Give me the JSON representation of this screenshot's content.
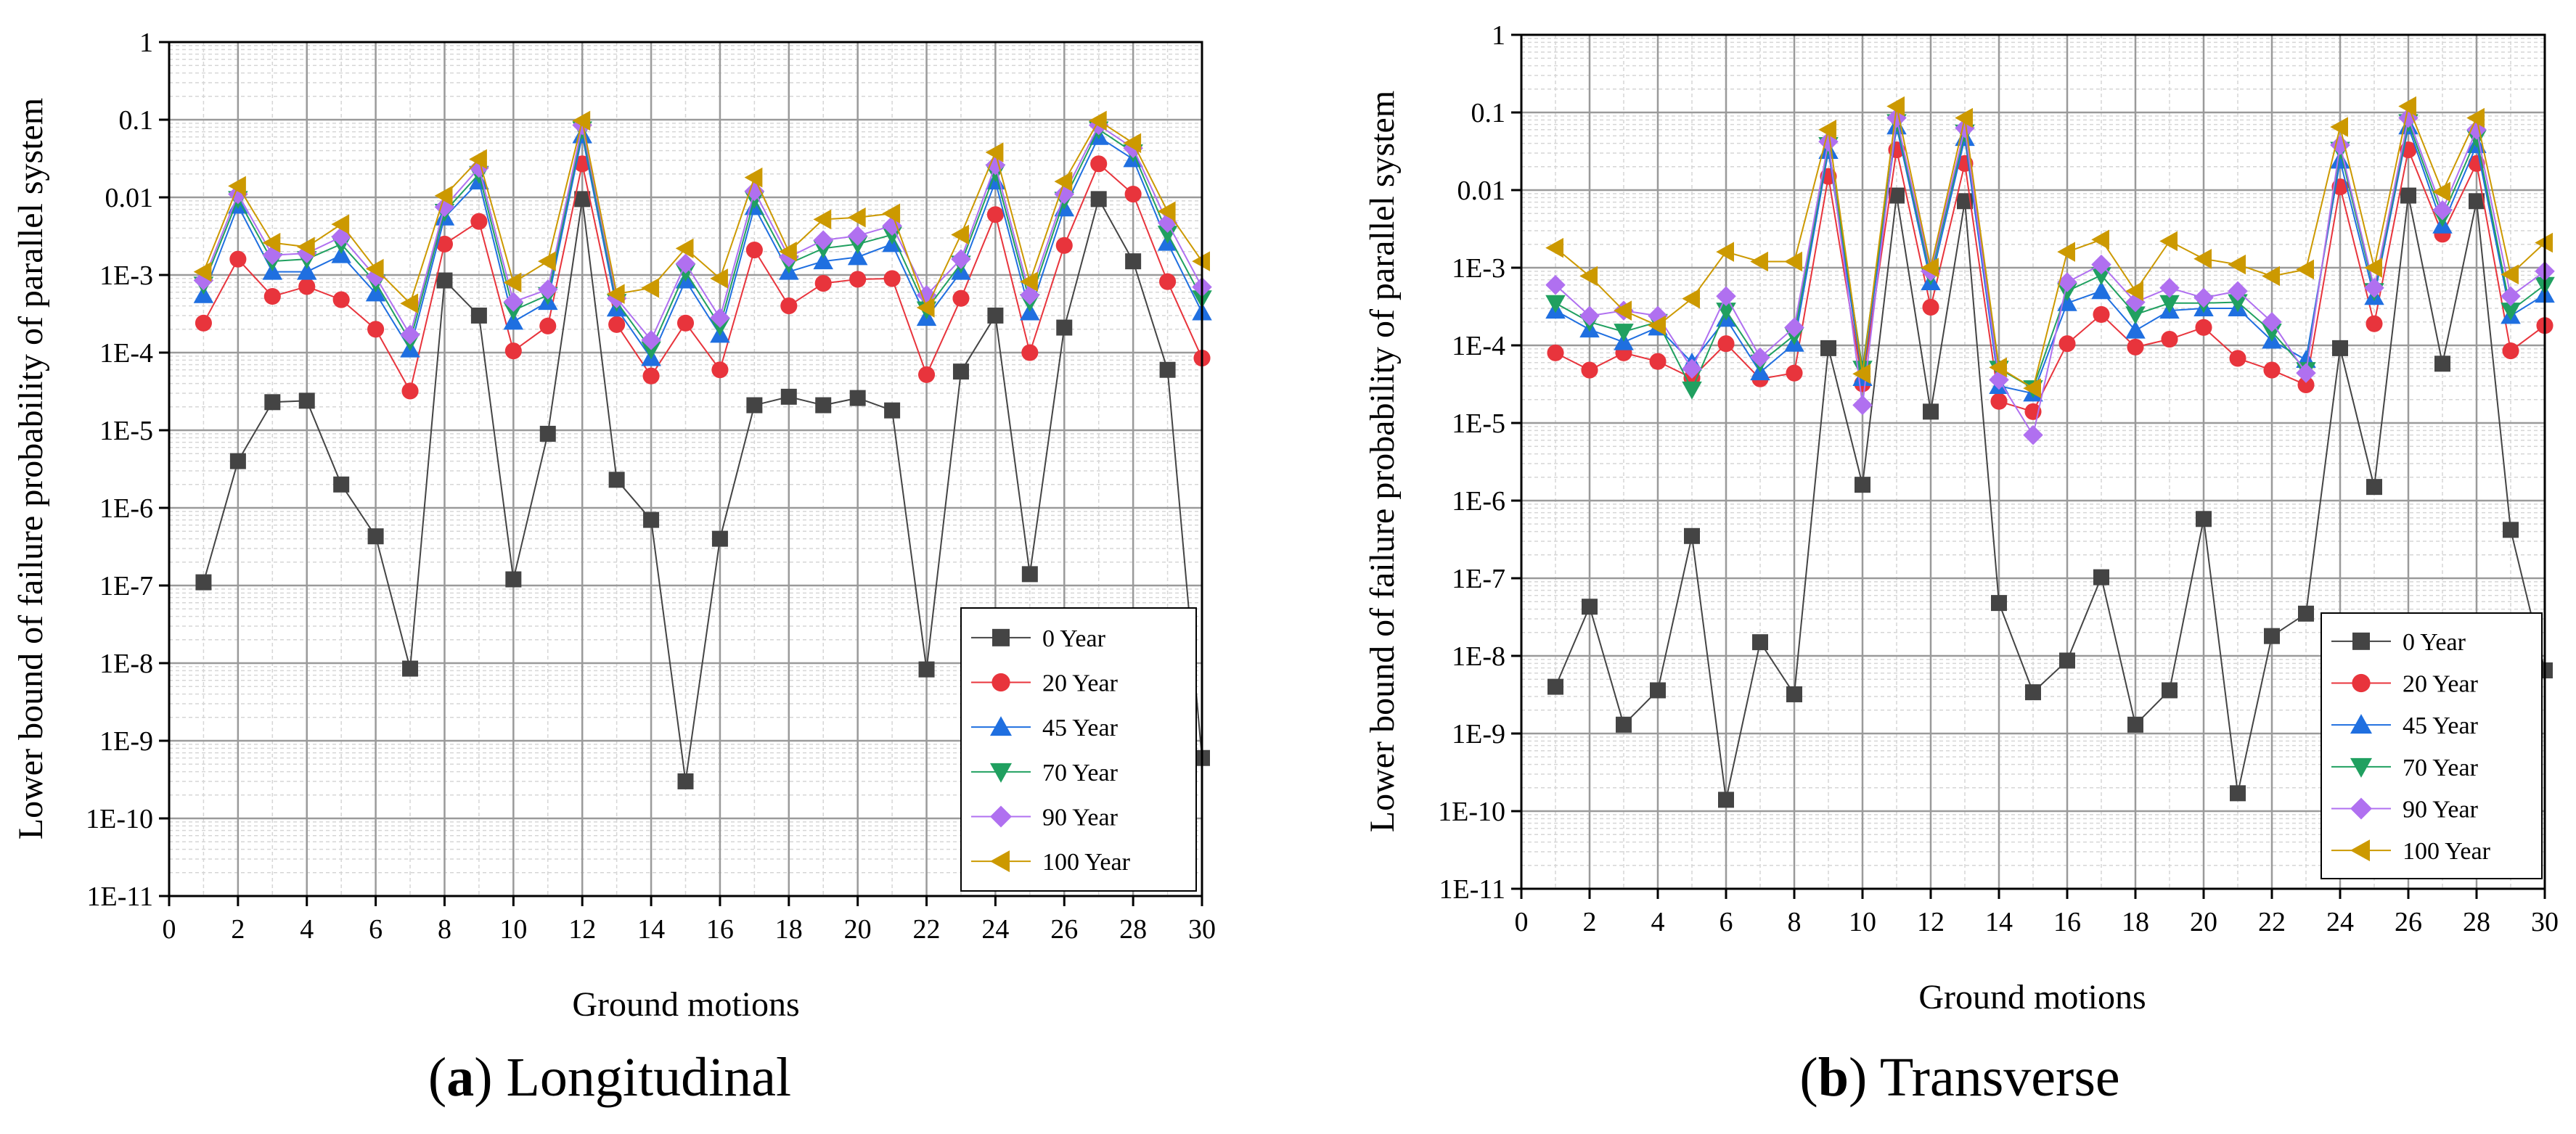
{
  "chart_data": [
    {
      "type": "line",
      "caption_letter": "a",
      "caption_text": "Longitudinal",
      "xlabel": "Ground motions",
      "ylabel": "Lower bound of failure probability of parallel system",
      "y_scale": "log",
      "ylim": [
        1e-11,
        1
      ],
      "xlim": [
        0,
        30
      ],
      "x_ticks": [
        "0",
        "2",
        "4",
        "6",
        "8",
        "10",
        "12",
        "14",
        "16",
        "18",
        "20",
        "22",
        "24",
        "26",
        "28",
        "30"
      ],
      "y_ticks": [
        "1E-11",
        "1E-10",
        "1E-9",
        "1E-8",
        "1E-7",
        "1E-6",
        "1E-5",
        "1E-4",
        "1E-3",
        "0.01",
        "0.1",
        "1"
      ],
      "grid": true,
      "legend_position": "bottom-right",
      "x": [
        1,
        2,
        3,
        4,
        5,
        6,
        7,
        8,
        9,
        10,
        11,
        12,
        13,
        14,
        15,
        16,
        17,
        18,
        19,
        20,
        21,
        22,
        23,
        24,
        25,
        26,
        27,
        28,
        29,
        30
      ],
      "series": [
        {
          "name": "0 Year",
          "values": [
            1.1e-07,
            4e-06,
            2.3e-05,
            2.4e-05,
            2e-06,
            4.3e-07,
            8.5e-09,
            0.00085,
            0.0003,
            1.2e-07,
            9e-06,
            0.0095,
            2.3e-06,
            7e-07,
            3e-10,
            4e-07,
            2.1e-05,
            2.7e-05,
            2.1e-05,
            2.6e-05,
            1.8e-05,
            8.3e-09,
            5.7e-05,
            0.0003,
            1.4e-07,
            0.00021,
            0.0095,
            0.0015,
            6e-05,
            6e-10
          ]
        },
        {
          "name": "20 Year",
          "values": [
            0.00024,
            0.0016,
            0.00053,
            0.00071,
            0.00048,
            0.0002,
            3.2e-05,
            0.0025,
            0.0049,
            0.000105,
            0.00022,
            0.027,
            0.00023,
            5e-05,
            0.00024,
            6e-05,
            0.0021,
            0.0004,
            0.00078,
            0.00088,
            0.0009,
            5.2e-05,
            0.0005,
            0.006,
            0.0001,
            0.0024,
            0.027,
            0.011,
            0.00082,
            8.5e-05
          ]
        },
        {
          "name": "45 Year",
          "values": [
            0.00055,
            0.0078,
            0.0011,
            0.0011,
            0.0018,
            0.00058,
            0.00011,
            0.0055,
            0.016,
            0.00025,
            0.00045,
            0.063,
            0.00037,
            8.5e-05,
            0.00085,
            0.00017,
            0.0075,
            0.0011,
            0.0015,
            0.0017,
            0.0025,
            0.00028,
            0.0011,
            0.016,
            0.00033,
            0.0072,
            0.06,
            0.031,
            0.0026,
            0.00033
          ]
        },
        {
          "name": "70 Year",
          "values": [
            0.00075,
            0.0095,
            0.0015,
            0.0016,
            0.0025,
            0.0008,
            0.00014,
            0.0065,
            0.02,
            0.00035,
            0.00055,
            0.075,
            0.00045,
            0.00011,
            0.0011,
            0.00022,
            0.0095,
            0.0014,
            0.0022,
            0.0025,
            0.0033,
            0.00036,
            0.0014,
            0.021,
            0.00045,
            0.0093,
            0.075,
            0.038,
            0.0034,
            0.0005
          ]
        },
        {
          "name": "90 Year",
          "values": [
            0.00085,
            0.011,
            0.0018,
            0.0019,
            0.0031,
            0.00095,
            0.00017,
            0.0075,
            0.024,
            0.00045,
            0.00065,
            0.085,
            0.0005,
            0.000145,
            0.0014,
            0.00028,
            0.012,
            0.0017,
            0.0028,
            0.0032,
            0.0043,
            0.00055,
            0.0016,
            0.026,
            0.00055,
            0.011,
            0.085,
            0.043,
            0.0047,
            0.0007
          ]
        },
        {
          "name": "100 Year",
          "values": [
            0.0011,
            0.014,
            0.0026,
            0.0023,
            0.0045,
            0.0012,
            0.00043,
            0.0105,
            0.031,
            0.0008,
            0.0015,
            0.097,
            0.00057,
            0.00068,
            0.0022,
            0.0009,
            0.018,
            0.002,
            0.0052,
            0.0055,
            0.0062,
            0.00038,
            0.0033,
            0.038,
            0.00082,
            0.016,
            0.097,
            0.05,
            0.0066,
            0.0015
          ]
        }
      ]
    },
    {
      "type": "line",
      "caption_letter": "b",
      "caption_text": "Transverse",
      "xlabel": "Ground motions",
      "ylabel": "Lower bound of failure probability of parallel system",
      "y_scale": "log",
      "ylim": [
        1e-11,
        1
      ],
      "xlim": [
        0,
        30
      ],
      "x_ticks": [
        "0",
        "2",
        "4",
        "6",
        "8",
        "10",
        "12",
        "14",
        "16",
        "18",
        "20",
        "22",
        "24",
        "26",
        "28",
        "30"
      ],
      "y_ticks": [
        "1E-11",
        "1E-10",
        "1E-9",
        "1E-8",
        "1E-7",
        "1E-6",
        "1E-5",
        "1E-4",
        "1E-3",
        "0.01",
        "0.1",
        "1"
      ],
      "grid": true,
      "legend_position": "bottom-right",
      "x": [
        1,
        2,
        3,
        4,
        5,
        6,
        7,
        8,
        9,
        10,
        11,
        12,
        13,
        14,
        15,
        16,
        17,
        18,
        19,
        20,
        21,
        22,
        23,
        24,
        25,
        26,
        27,
        28,
        29,
        30
      ],
      "series": [
        {
          "name": "0 Year",
          "values": [
            4e-09,
            4.3e-08,
            1.3e-09,
            3.6e-09,
            3.5e-07,
            1.4e-10,
            1.5e-08,
            3.2e-09,
            9.2e-05,
            1.6e-06,
            0.0085,
            1.4e-05,
            0.0072,
            4.8e-08,
            3.4e-09,
            8.7e-09,
            1.03e-07,
            1.3e-09,
            3.6e-09,
            5.8e-07,
            1.7e-10,
            1.8e-08,
            3.5e-08,
            9.2e-05,
            1.5e-06,
            0.0085,
            5.8e-05,
            0.0072,
            4.2e-07,
            6.5e-09
          ]
        },
        {
          "name": "20 Year",
          "values": [
            8e-05,
            4.8e-05,
            8e-05,
            6.2e-05,
            3.8e-05,
            0.000105,
            3.7e-05,
            4.4e-05,
            0.015,
            3.2e-05,
            0.033,
            0.00031,
            0.022,
            1.9e-05,
            1.4e-05,
            0.000105,
            0.00025,
            9.5e-05,
            0.00012,
            0.00017,
            6.8e-05,
            4.8e-05,
            3.1e-05,
            0.011,
            0.00019,
            0.033,
            0.0027,
            0.022,
            8.5e-05,
            0.00018
          ]
        },
        {
          "name": "45 Year",
          "values": [
            0.00028,
            0.00016,
            0.00011,
            0.00017,
            6e-05,
            0.00022,
            4.5e-05,
            0.000105,
            0.032,
            3.8e-05,
            0.066,
            0.00065,
            0.047,
            3e-05,
            2.4e-05,
            0.00035,
            0.0005,
            0.000155,
            0.00028,
            0.0003,
            0.0003,
            0.000115,
            6.5e-05,
            0.024,
            0.00042,
            0.066,
            0.0035,
            0.038,
            0.00024,
            0.00045
          ]
        },
        {
          "name": "70 Year",
          "values": [
            0.00035,
            0.0002,
            0.00015,
            0.0002,
            2.7e-05,
            0.00028,
            6e-05,
            0.000135,
            0.038,
            5e-05,
            0.075,
            0.0008,
            0.055,
            5e-05,
            2.8e-05,
            0.0005,
            0.0008,
            0.00025,
            0.00035,
            0.00035,
            0.00036,
            0.00015,
            4.8e-05,
            0.033,
            0.0005,
            0.075,
            0.0045,
            0.047,
            0.00028,
            0.0006
          ]
        },
        {
          "name": "90 Year",
          "values": [
            0.0006,
            0.00024,
            0.00028,
            0.00024,
            5e-05,
            0.00043,
            7e-05,
            0.00017,
            0.042,
            1.7e-05,
            0.085,
            0.0009,
            0.063,
            3.6e-05,
            7e-06,
            0.00065,
            0.0011,
            0.00036,
            0.00055,
            0.00041,
            0.0005,
            0.0002,
            4.4e-05,
            0.038,
            0.00055,
            0.085,
            0.0055,
            0.06,
            0.00043,
            0.0009
          ]
        },
        {
          "name": "100 Year",
          "values": [
            0.0018,
            0.00078,
            0.00028,
            0.00018,
            0.0004,
            0.0016,
            0.0012,
            0.0012,
            0.06,
            4.3e-05,
            0.12,
            0.001,
            0.085,
            5.2e-05,
            2.8e-05,
            0.0016,
            0.0023,
            0.0005,
            0.0022,
            0.0013,
            0.0011,
            0.00078,
            0.00095,
            0.065,
            0.001,
            0.12,
            0.0095,
            0.085,
            0.00082,
            0.0021
          ]
        }
      ]
    }
  ],
  "styles": {
    "colors": [
      "#444444",
      "#e8343c",
      "#1f6fe0",
      "#20a060",
      "#b070f0",
      "#cc9900"
    ],
    "markers": [
      "square",
      "circle",
      "triangle-up",
      "triangle-down",
      "diamond",
      "triangle-left"
    ]
  }
}
